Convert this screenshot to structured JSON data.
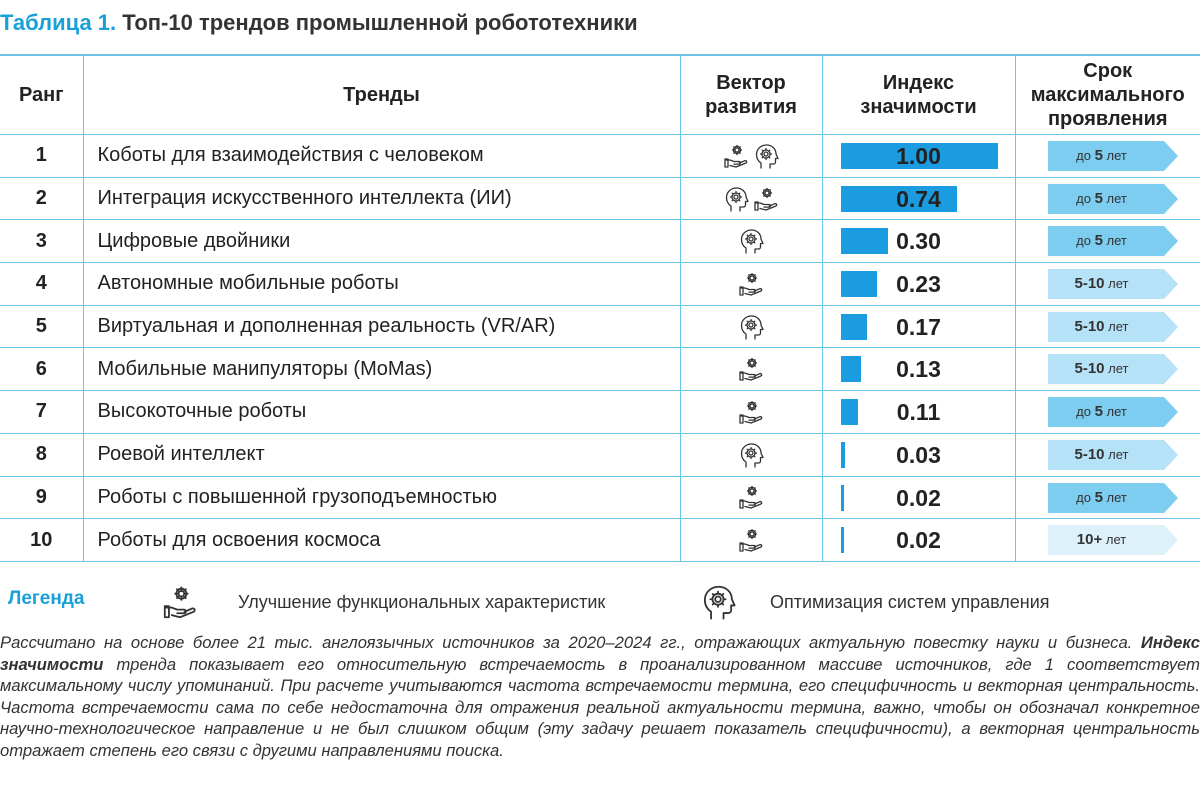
{
  "title": {
    "label": "Таблица 1.",
    "text": "Топ-10 трендов промышленной робототехники"
  },
  "table": {
    "headers": [
      "Ранг",
      "Тренды",
      "Вектор развития",
      "Индекс значимости",
      "Срок максимального проявления"
    ],
    "index_max": 1,
    "rows": [
      {
        "rank": 1,
        "trend": "Коботы для взаимодействия с человеком",
        "vectors": [
          0,
          1
        ],
        "index": 1.0,
        "index_label": "1.00",
        "term": {
          "pre": "до",
          "main": "5",
          "post": "лет"
        },
        "term_color": "#7ccdf0"
      },
      {
        "rank": 2,
        "trend": "Интеграция искусственного интеллекта (ИИ)",
        "vectors": [
          1,
          0
        ],
        "index": 0.74,
        "term": {
          "pre": "до",
          "main": "5",
          "post": "лет"
        },
        "term_color": "#7ccdf0"
      },
      {
        "rank": 3,
        "trend": "Цифровые двойники",
        "vectors": [
          1
        ],
        "index": 0.3,
        "index_label": "0.30",
        "term": {
          "pre": "до",
          "main": "5",
          "post": "лет"
        },
        "term_color": "#7ccdf0"
      },
      {
        "rank": 4,
        "trend": "Автономные мобильные роботы",
        "vectors": [
          0
        ],
        "index": 0.23,
        "term": {
          "main": "5-10",
          "post": "лет"
        },
        "term_color": "#b5e2f6"
      },
      {
        "rank": 5,
        "trend": "Виртуальная и дополненная реальность (VR/AR)",
        "vectors": [
          1
        ],
        "index": 0.17,
        "term": {
          "main": "5-10",
          "post": "лет"
        },
        "term_color": "#b5e2f6"
      },
      {
        "rank": 6,
        "trend": "Мобильные манипуляторы (MoMas)",
        "vectors": [
          0
        ],
        "index": 0.13,
        "term": {
          "main": "5-10",
          "post": "лет"
        },
        "term_color": "#b5e2f6"
      },
      {
        "rank": 7,
        "trend": "Высокоточные роботы",
        "vectors": [
          0
        ],
        "index": 0.11,
        "term": {
          "pre": "до",
          "main": "5",
          "post": "лет"
        },
        "term_color": "#7ccdf0"
      },
      {
        "rank": 8,
        "trend": "Роевой интеллект",
        "vectors": [
          1
        ],
        "index": 0.03,
        "term": {
          "main": "5-10",
          "post": "лет"
        },
        "term_color": "#b5e2f6"
      },
      {
        "rank": 9,
        "trend": "Роботы с повышенной грузоподъемностью",
        "vectors": [
          0
        ],
        "index": 0.02,
        "term": {
          "pre": "до",
          "main": "5",
          "post": "лет"
        },
        "term_color": "#7ccdf0"
      },
      {
        "rank": 10,
        "trend": "Роботы для освоения космоса",
        "vectors": [
          0
        ],
        "index": 0.02,
        "term": {
          "main": "10+",
          "post": "лет"
        },
        "term_color": "#dcf1fa"
      }
    ]
  },
  "legend": {
    "title": "Легенда",
    "items": [
      "Улучшение функциональных характеристик",
      "Оптимизация систем управления"
    ]
  },
  "footnote": [
    "Рассчитано на основе более 21 тыс. англоязычных источников за 2020–2024 гг., отражающих актуальную повестку науки и бизнеса.",
    "Индекс значимости",
    "тренда показывает его относительную встречаемость в проанализированном массиве источников, где 1 соответствует максимальному числу упоминаний. При расчете учитываются частота встречаемости термина, его специфичность и векторная центральность. Частота встречаемости сама по себе недостаточна для отражения реальной актуальности термина, важно, чтобы он обозначал конкретное научно-технологическое направление и не был слишком общим (эту задачу решает показатель специфичности), а векторная центральность отражает степень его связи с другими направлениями поиска."
  ]
}
